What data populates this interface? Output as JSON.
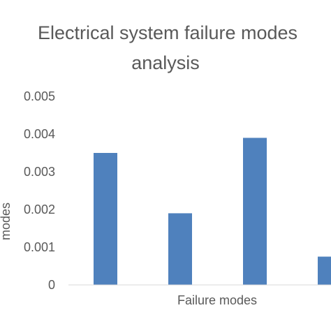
{
  "chart_data": {
    "type": "bar",
    "title_lines": [
      "Electrical system failure modes",
      "analysis"
    ],
    "xlabel": "Failure modes",
    "ylabel": "modes",
    "categories": [
      "",
      "",
      "",
      ""
    ],
    "values": [
      0.0035,
      0.0019,
      0.0039,
      0.00075
    ],
    "ylim": [
      0,
      0.005
    ],
    "yticks": [
      "0",
      "0.001",
      "0.002",
      "0.003",
      "0.004",
      "0.005"
    ],
    "grid": false,
    "legend": "none",
    "colors": {
      "bar": "#4F81BD",
      "text": "#595959",
      "axis": "#D9D9D9"
    }
  }
}
